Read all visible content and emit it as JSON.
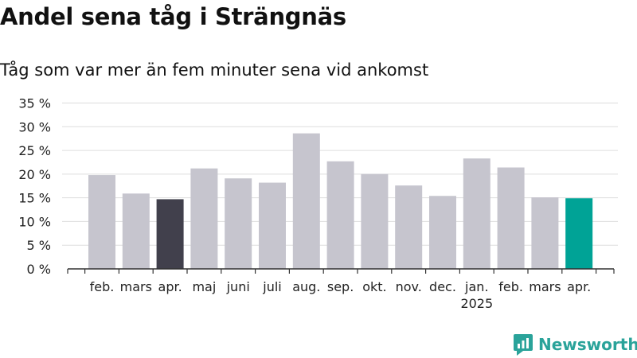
{
  "title": "Andel sena tåg i Strängnäs",
  "subtitle": "Tåg som var mer än fem minuter sena vid ankomst",
  "brand": {
    "name": "Newsworthy",
    "icon": "newsworthy-logo-icon"
  },
  "colors": {
    "bar_default": "#c6c5ce",
    "bar_prev_year_highlight": "#41404c",
    "bar_current": "#00a396",
    "grid": "#dddddd",
    "axis": "#333333",
    "brand": "#2aa39a"
  },
  "chart_data": {
    "type": "bar",
    "title": "Andel sena tåg i Strängnäs",
    "subtitle": "Tåg som var mer än fem minuter sena vid ankomst",
    "xlabel": "",
    "ylabel": "",
    "ylim": [
      0,
      35
    ],
    "yticks": [
      0,
      5,
      10,
      15,
      20,
      25,
      30,
      35
    ],
    "ytick_labels": [
      "0 %",
      "5 %",
      "10 %",
      "15 %",
      "20 %",
      "25 %",
      "30 %",
      "35 %"
    ],
    "grid": true,
    "legend": "none",
    "categories": [
      "feb.",
      "mars",
      "apr.",
      "maj",
      "juni",
      "juli",
      "aug.",
      "sep.",
      "okt.",
      "nov.",
      "dec.",
      "jan.",
      "feb.",
      "mars",
      "apr."
    ],
    "year_labels": [
      "",
      "",
      "",
      "",
      "",
      "",
      "",
      "",
      "",
      "",
      "",
      "2025",
      "",
      "",
      ""
    ],
    "values": [
      19.8,
      15.9,
      14.7,
      21.2,
      19.1,
      18.2,
      28.6,
      22.7,
      20.0,
      17.6,
      15.4,
      23.3,
      21.4,
      15.1,
      14.9
    ],
    "highlight": [
      "default",
      "default",
      "prev_year_highlight",
      "default",
      "default",
      "default",
      "default",
      "default",
      "default",
      "default",
      "default",
      "default",
      "default",
      "default",
      "current"
    ]
  }
}
